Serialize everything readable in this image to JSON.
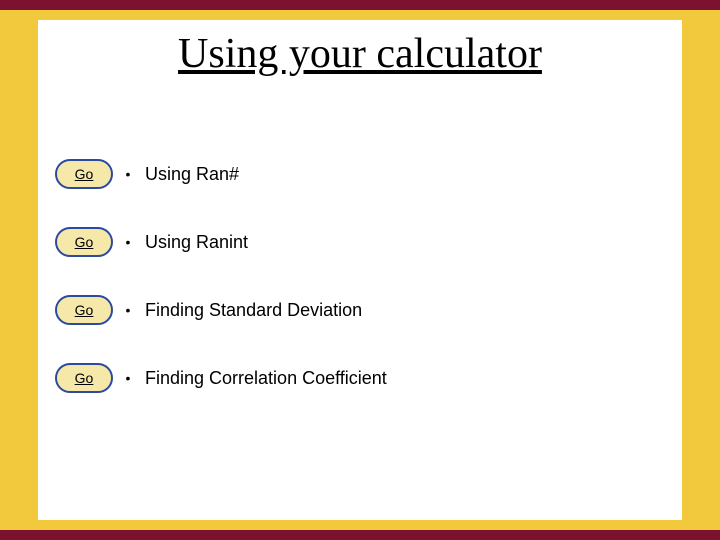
{
  "title": "Using your calculator",
  "colors": {
    "border_yellow": "#f2c83c",
    "border_maroon": "#7a1230",
    "bar_top_bottom_outer_height": 20,
    "bar_top_bottom_inner_height": 10,
    "bar_side_width": 38,
    "go_fill": "#f6e8a8",
    "go_stroke": "#2b4aa0",
    "go_stroke_width": 2,
    "background": "#ffffff",
    "text": "#000000"
  },
  "typography": {
    "title_font": "Times New Roman",
    "title_size_pt": 32,
    "body_font": "Verdana",
    "body_size_pt": 14,
    "go_size_pt": 11
  },
  "go_label": "Go",
  "bullet_char": "•",
  "items": [
    {
      "label": "Using  Ran#"
    },
    {
      "label": "Using   Ranint"
    },
    {
      "label": "Finding Standard Deviation"
    },
    {
      "label": "Finding Correlation Coefficient"
    }
  ]
}
